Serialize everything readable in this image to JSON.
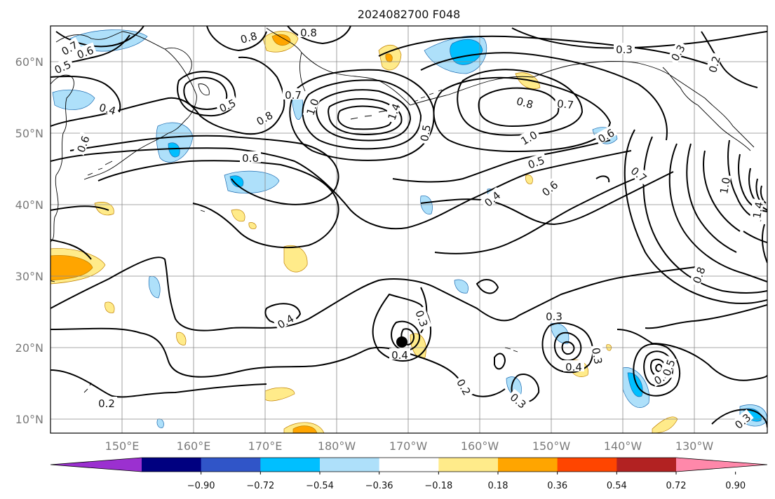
{
  "title": "2024082700 F048",
  "lon_labels": [
    "150°E",
    "160°E",
    "170°E",
    "180°W",
    "170°W",
    "160°W",
    "150°W",
    "140°W",
    "130°W"
  ],
  "lat_labels": [
    "60°N",
    "50°N",
    "40°N",
    "30°N",
    "20°N",
    "10°N"
  ],
  "colorbar": {
    "colors": [
      "#9b30d0",
      "#000080",
      "#3055c8",
      "#00bfff",
      "#aee0fa",
      "#ffffff",
      "#ffeb8a",
      "#ffa500",
      "#ff4500",
      "#b22222",
      "#ff88aa"
    ],
    "tick_labels": [
      "−0.90",
      "−0.72",
      "−0.54",
      "−0.36",
      "−0.18",
      "0.18",
      "0.36",
      "0.54",
      "0.72",
      "0.90"
    ]
  },
  "contour_labels": [
    "0.7",
    "0.6",
    "0.5",
    "0.8",
    "0.8",
    "0.4",
    "0.6",
    "0.5",
    "0.7",
    "1.0",
    "0.8",
    "0.6",
    "1.4",
    "0.5",
    "0.3",
    "0.3",
    "0.8",
    "0.7",
    "1.0",
    "0.5",
    "0.6",
    "0.4",
    "0.6",
    "0.7",
    "1.0",
    "0.8",
    "1.4",
    "0.4",
    "0.3",
    "0.3",
    "0.4",
    "0.3",
    "0.4",
    "0.3",
    "0.4",
    "0.5",
    "0.2",
    "0.2",
    "0.3",
    "0.2"
  ]
}
